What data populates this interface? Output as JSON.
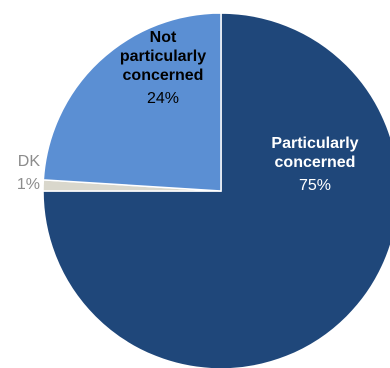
{
  "chart_data": {
    "type": "pie",
    "slices": [
      {
        "label_lines": [
          "Particularly",
          "concerned"
        ],
        "value": 75,
        "value_label": "75%",
        "color": "#1f477a",
        "label_color": "#ffffff"
      },
      {
        "label_lines": [
          "DK"
        ],
        "value": 1,
        "value_label": "1%",
        "color": "#d9d7cc",
        "label_color": "#8c8c8c"
      },
      {
        "label_lines": [
          "Not",
          "particularly",
          "concerned"
        ],
        "value": 24,
        "value_label": "24%",
        "color": "#5b8fd3",
        "label_color": "#000000"
      }
    ],
    "start": "top, clockwise",
    "legend": "none (labels on slices)"
  }
}
